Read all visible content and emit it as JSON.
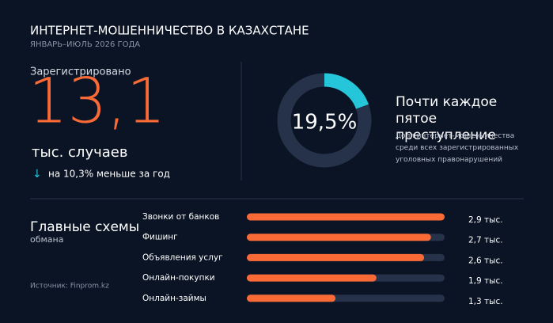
{
  "header": {
    "title": "ИНТЕРНЕТ-МОШЕННИЧЕСТВО В КАЗАХСТАНЕ",
    "subtitle": "ЯНВАРЬ–ИЮЛЬ 2026 ГОДА"
  },
  "stat": {
    "label": "Зарегистрировано",
    "number": "13,1",
    "unit": "тыс. случаев",
    "change": "на 10,3% меньше за год"
  },
  "chart_data": [
    {
      "type": "donut",
      "title": "Почти каждое пятое преступление",
      "description": "Доля интернет-мошенничества среди всех зарегистрированных уголовных правонарушений",
      "center_label": "19,5%",
      "values": [
        19.5,
        80.5
      ],
      "colors": [
        "#26c6da",
        "#26324a"
      ]
    },
    {
      "type": "bar",
      "title": "Главные схемы",
      "subtitle": "обмана",
      "categories": [
        "Звонки от банков",
        "Фишинг",
        "Объявления услуг",
        "Онлайн-покупки",
        "Онлайн-займы"
      ],
      "values": [
        2.9,
        2.7,
        2.6,
        1.9,
        1.3
      ],
      "value_labels": [
        "2,9 тыс.",
        "2,7 тыс.",
        "2,6 тыс.",
        "1,9 тыс.",
        "1,3 тыс."
      ],
      "xlim": [
        0,
        2.9
      ],
      "color": "#fa6a37",
      "track_color": "#26324a"
    }
  ],
  "source": "Источник: Finprom.kz"
}
